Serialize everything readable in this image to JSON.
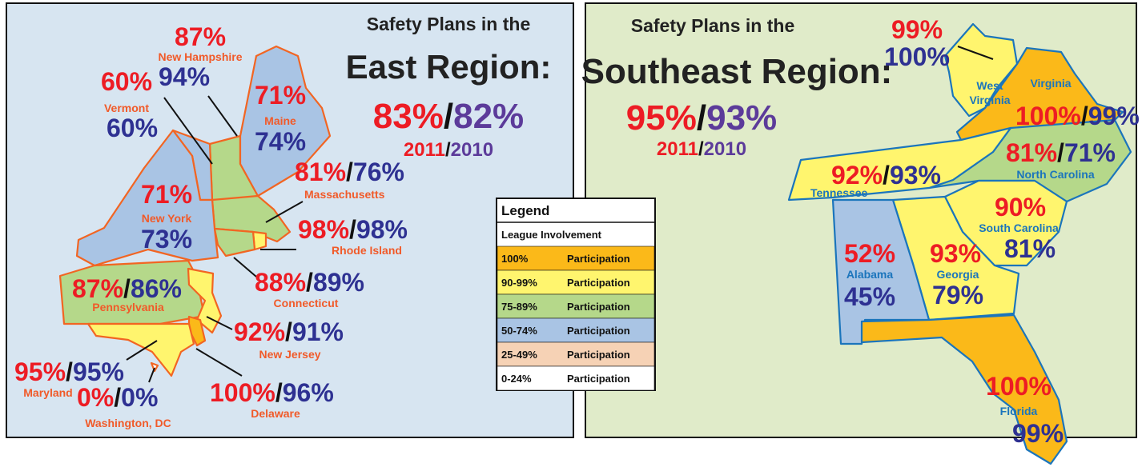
{
  "separator": "/",
  "panels": [
    {
      "title_line1": "Safety Plans in the",
      "title_line2": "East Region:",
      "summary": {
        "value_2011": "83%",
        "value_2010": "82%",
        "year_2011": "2011",
        "year_2010": "2010"
      },
      "states": [
        {
          "name": "New Hampshire",
          "v2011": "87%",
          "v2010": "94%",
          "color": "#b5d88a"
        },
        {
          "name": "Vermont",
          "v2011": "60%",
          "v2010": "60%",
          "color": "#a9c4e4"
        },
        {
          "name": "Maine",
          "v2011": "71%",
          "v2010": "74%",
          "color": "#a9c4e4"
        },
        {
          "name": "Massachusetts",
          "v2011": "81%",
          "v2010": "76%",
          "color": "#b5d88a"
        },
        {
          "name": "New York",
          "v2011": "71%",
          "v2010": "73%",
          "color": "#a9c4e4"
        },
        {
          "name": "Rhode Island",
          "v2011": "98%",
          "v2010": "98%",
          "color": "#fff56e"
        },
        {
          "name": "Connecticut",
          "v2011": "88%",
          "v2010": "89%",
          "color": "#b5d88a"
        },
        {
          "name": "Pennsylvania",
          "v2011": "87%",
          "v2010": "86%",
          "color": "#b5d88a"
        },
        {
          "name": "New Jersey",
          "v2011": "92%",
          "v2010": "91%",
          "color": "#fff56e"
        },
        {
          "name": "Delaware",
          "v2011": "100%",
          "v2010": "96%",
          "color": "#fbb919"
        },
        {
          "name": "Maryland",
          "v2011": "95%",
          "v2010": "95%",
          "color": "#fff56e"
        },
        {
          "name": "Washington, DC",
          "v2011": "0%",
          "v2010": "0%",
          "color": "#ffffff"
        }
      ]
    },
    {
      "title_line1": "Safety Plans in the",
      "title_line2": "Southeast Region:",
      "summary": {
        "value_2011": "95%",
        "value_2010": "93%",
        "year_2011": "2011",
        "year_2010": "2010"
      },
      "states": [
        {
          "name": [
            "West",
            "Virginia"
          ],
          "v2011": "99%",
          "v2010": "100%",
          "color": "#fff56e"
        },
        {
          "name": "Virginia",
          "v2011": "100%",
          "v2010": "99%",
          "color": "#fbb919"
        },
        {
          "name": "North Carolina",
          "v2011": "81%",
          "v2010": "71%",
          "color": "#b5d88a"
        },
        {
          "name": "Tennessee",
          "v2011": "92%",
          "v2010": "93%",
          "color": "#fff56e"
        },
        {
          "name": "South Carolina",
          "v2011": "90%",
          "v2010": "81%",
          "color": "#fff56e"
        },
        {
          "name": "Georgia",
          "v2011": "93%",
          "v2010": "79%",
          "color": "#fff56e"
        },
        {
          "name": "Alabama",
          "v2011": "52%",
          "v2010": "45%",
          "color": "#a9c4e4"
        },
        {
          "name": "Florida",
          "v2011": "100%",
          "v2010": "99%",
          "color": "#fbb919"
        }
      ]
    }
  ],
  "legend": {
    "title": "Legend",
    "subtitle": "League Involvement",
    "rows": [
      {
        "range": "100%",
        "label": "Participation",
        "color": "#fbb919"
      },
      {
        "range": "90-99%",
        "label": "Participation",
        "color": "#fff56e"
      },
      {
        "range": "75-89%",
        "label": "Participation",
        "color": "#b5d88a"
      },
      {
        "range": "50-74%",
        "label": "Participation",
        "color": "#a9c4e4"
      },
      {
        "range": "25-49%",
        "label": "Participation",
        "color": "#f6d2b5"
      },
      {
        "range": "0-24%",
        "label": "Participation",
        "color": "#ffffff"
      }
    ]
  }
}
